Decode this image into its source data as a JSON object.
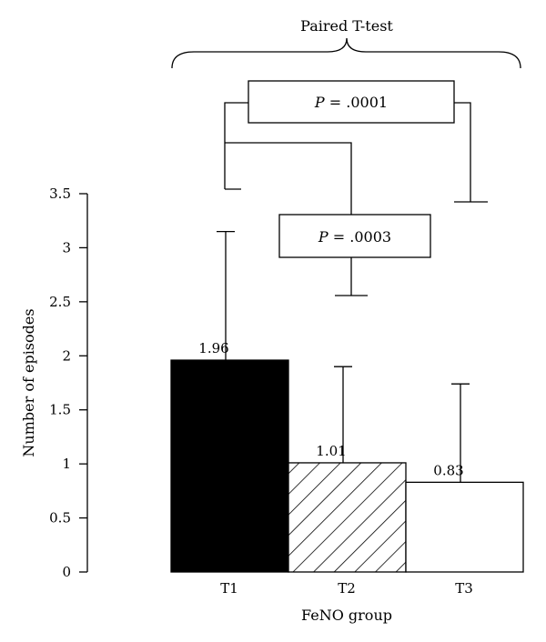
{
  "chart_data": {
    "type": "bar",
    "xlabel": "FeNO group",
    "ylabel": "Number of episodes",
    "ylim": [
      0,
      3.5
    ],
    "yticks": [
      "0",
      "0.5",
      "1",
      "1.5",
      "2",
      "2.5",
      "3",
      "3.5"
    ],
    "ytick_values": [
      0,
      0.5,
      1,
      1.5,
      2,
      2.5,
      3,
      3.5
    ],
    "categories": [
      "T1",
      "T2",
      "T3"
    ],
    "values": [
      1.96,
      1.01,
      0.83
    ],
    "value_labels": [
      "1.96",
      "1.01",
      "0.83"
    ],
    "error_upper": [
      3.15,
      1.9,
      1.74
    ],
    "fills": [
      "solid-black",
      "diagonal-hatch",
      "white"
    ],
    "annotations": {
      "bracket_title": "Paired T-test",
      "comparisons": [
        {
          "between": [
            "T1",
            "T3"
          ],
          "p_label": "P",
          "p_text": " = .0001"
        },
        {
          "between": [
            "T1",
            "T2"
          ],
          "p_label": "P",
          "p_text": " = .0003"
        }
      ]
    }
  }
}
